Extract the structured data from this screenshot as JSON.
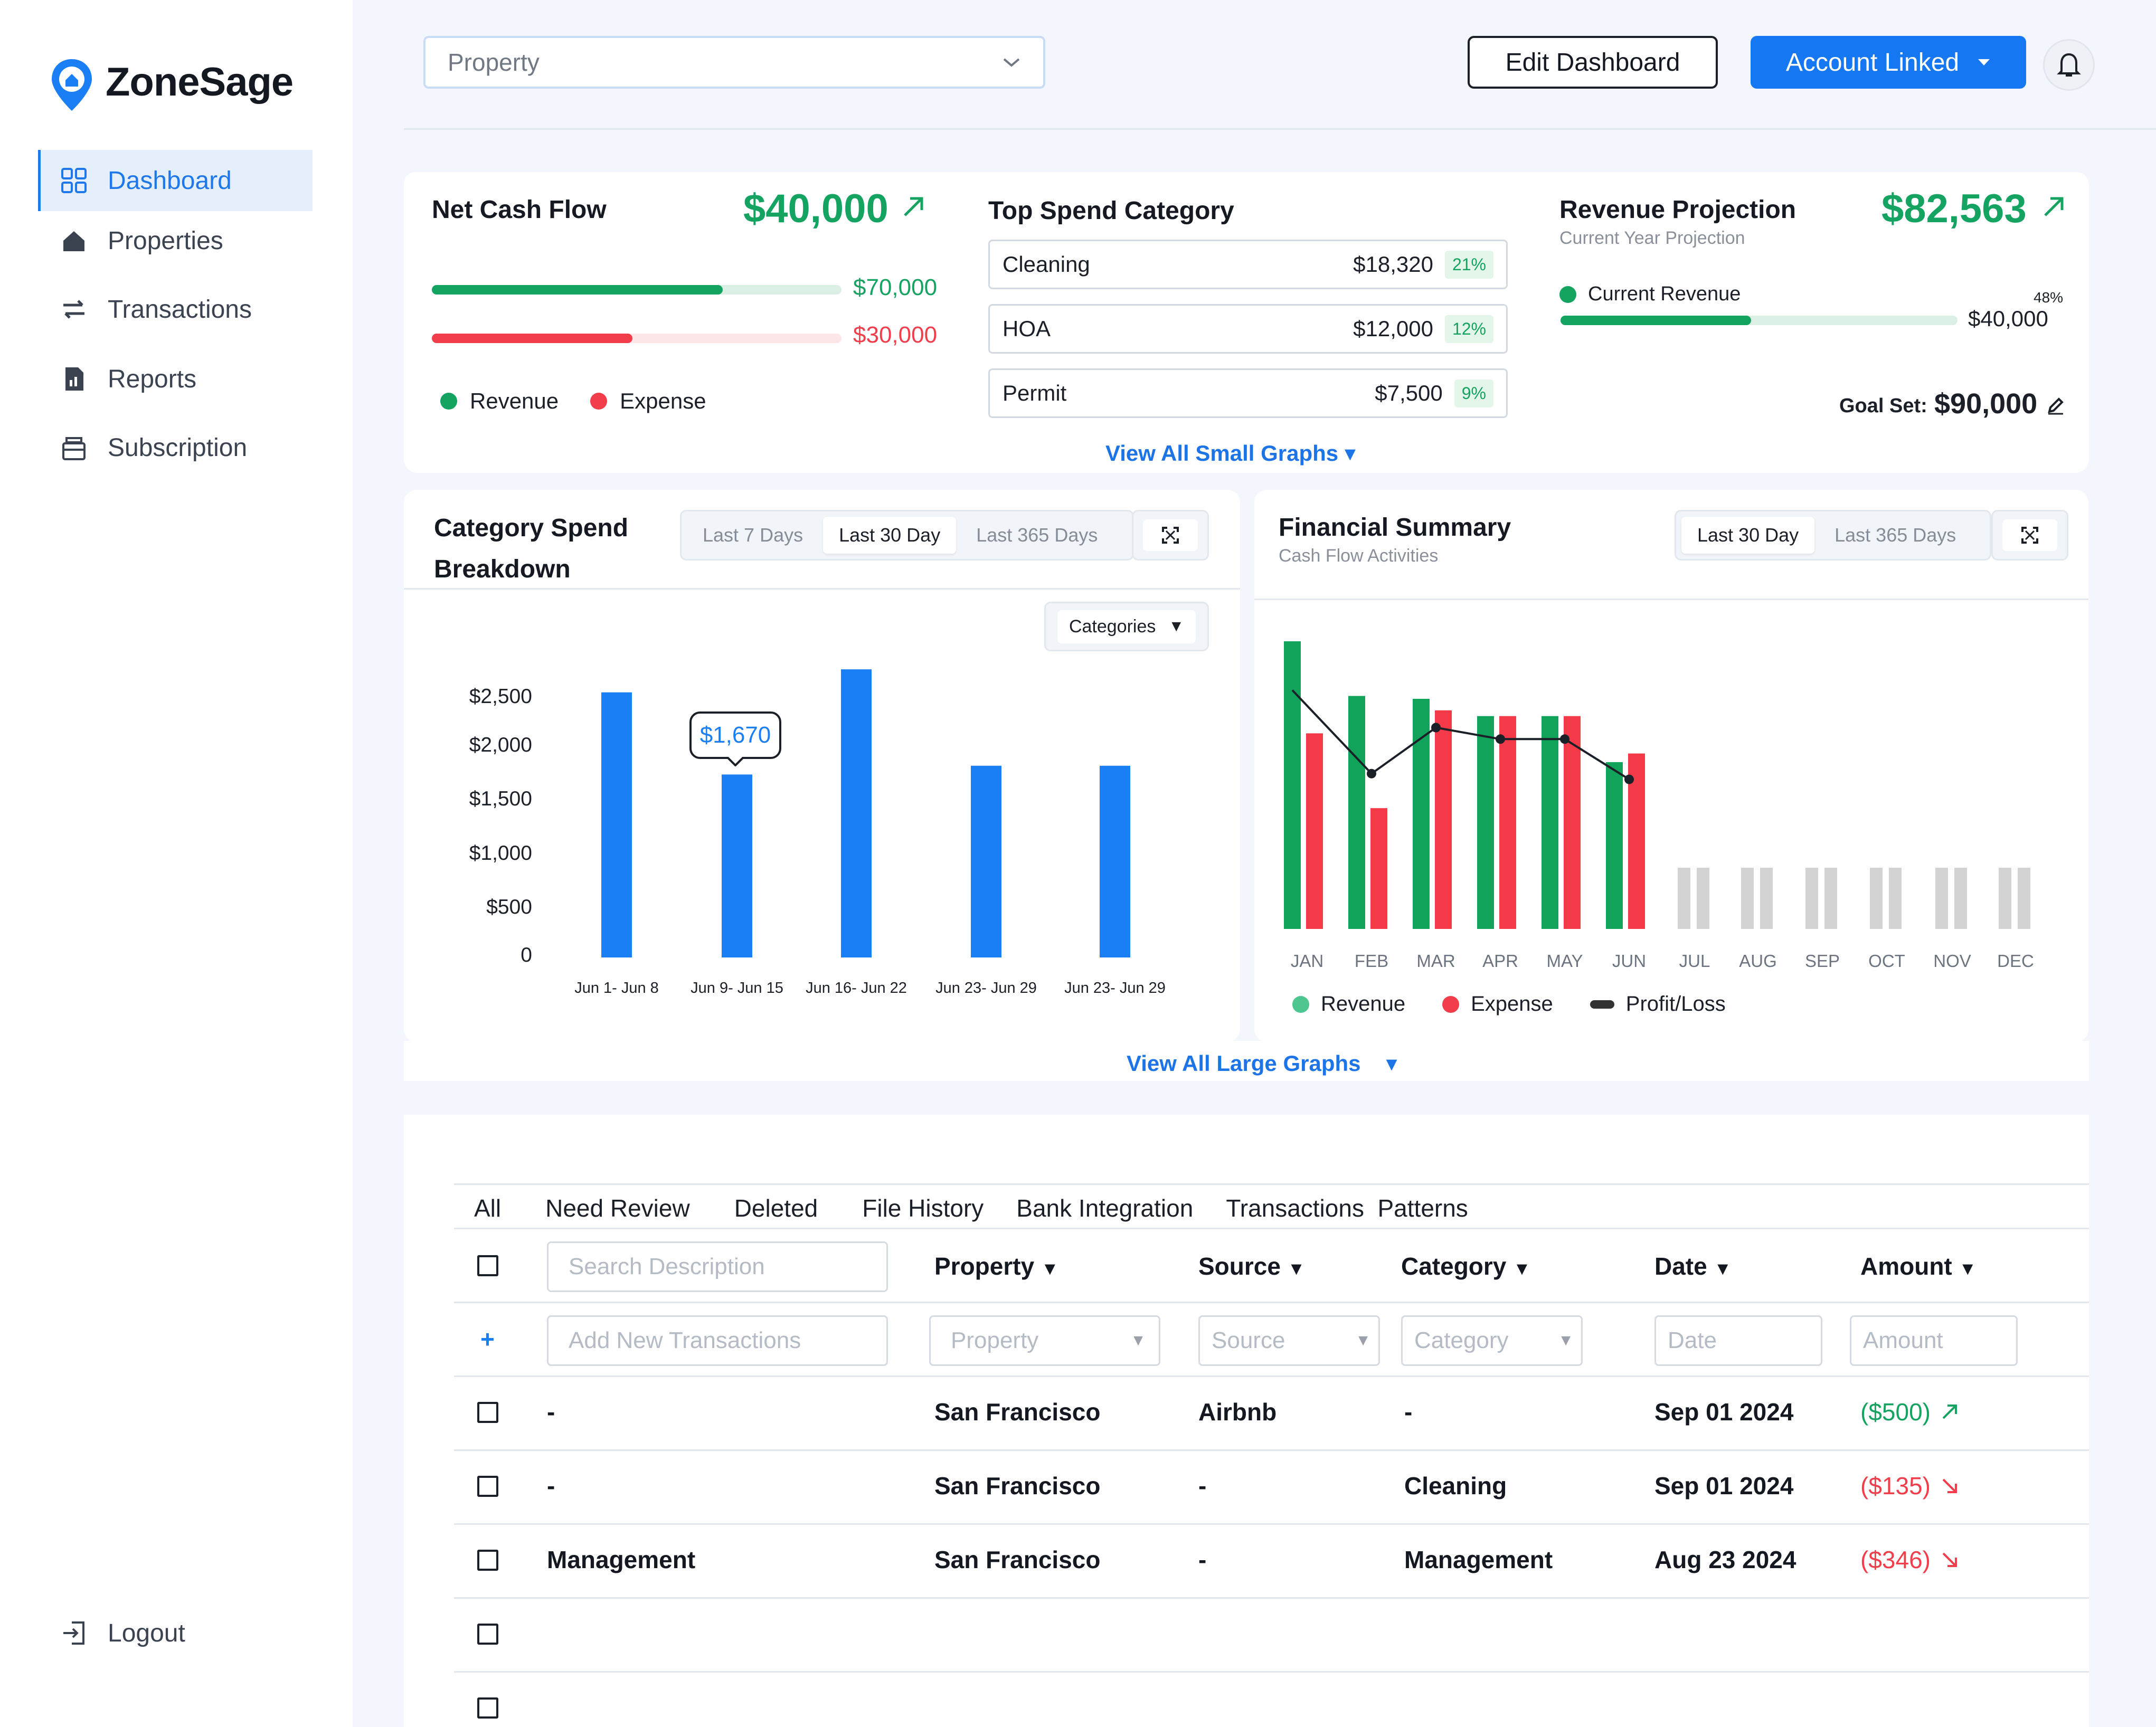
{
  "app": {
    "name": "ZoneSage"
  },
  "sidebar": {
    "items": [
      {
        "label": "Dashboard",
        "icon": "grid-icon",
        "active": true
      },
      {
        "label": "Properties",
        "icon": "home-icon"
      },
      {
        "label": "Transactions",
        "icon": "transfer-icon"
      },
      {
        "label": "Reports",
        "icon": "report-icon"
      },
      {
        "label": "Subscription",
        "icon": "subscription-icon"
      }
    ],
    "logout": "Logout"
  },
  "header": {
    "property_placeholder": "Property",
    "edit_dashboard": "Edit Dashboard",
    "account_linked": "Account Linked"
  },
  "net_cash_flow": {
    "title": "Net Cash Flow",
    "value": "$40,000",
    "revenue": "$70,000",
    "expense": "$30,000",
    "revenue_fill": 0.71,
    "expense_fill": 0.49,
    "legend_revenue": "Revenue",
    "legend_expense": "Expense"
  },
  "top_spend": {
    "title": "Top Spend Category",
    "rows": [
      {
        "name": "Cleaning",
        "amount": "$18,320",
        "pct": "21%"
      },
      {
        "name": "HOA",
        "amount": "$12,000",
        "pct": "12%"
      },
      {
        "name": "Permit",
        "amount": "$7,500",
        "pct": "9%"
      }
    ]
  },
  "revenue_projection": {
    "title": "Revenue Projection",
    "subtitle": "Current Year Projection",
    "value": "$82,563",
    "current_label": "Current Revenue",
    "pct": "48%",
    "current_value": "$40,000",
    "progress": 0.48,
    "goal_label": "Goal Set:",
    "goal_value": "$90,000"
  },
  "view_all_small": "View All Small Graphs",
  "view_all_large": "View All Large Graphs",
  "category_spend": {
    "title_line1": "Category Spend",
    "title_line2": "Breakdown",
    "ranges": [
      "Last 7 Days",
      "Last 30 Day",
      "Last 365 Days"
    ],
    "active_range": 1,
    "filter": "Categories",
    "tooltip": "$1,670"
  },
  "financial_summary": {
    "title": "Financial Summary",
    "subtitle": "Cash Flow Activities",
    "ranges": [
      "Last 30 Day",
      "Last 365 Days"
    ],
    "active_range": 0,
    "legend": [
      "Revenue",
      "Expense",
      "Profit/Loss"
    ]
  },
  "chart_data": [
    {
      "type": "bar",
      "categories": [
        "Jun 1- Jun 8",
        "Jun 9- Jun 15",
        "Jun 16- Jun 22",
        "Jun 23- Jun 29",
        "Jun 23- Jun 29"
      ],
      "values": [
        2420,
        1670,
        2630,
        1750,
        1750
      ],
      "yticks": [
        "0",
        "$500",
        "$1,000",
        "$1,500",
        "$2,000",
        "$2,500"
      ],
      "ylim": [
        0,
        2650
      ],
      "color": "#1a7ef5"
    },
    {
      "type": "bar",
      "categories": [
        "JAN",
        "FEB",
        "MAR",
        "APR",
        "MAY",
        "JUN",
        "JUL",
        "AUG",
        "SEP",
        "OCT",
        "NOV",
        "DEC"
      ],
      "series": [
        {
          "name": "Revenue",
          "color": "#12a35a",
          "values": [
            100,
            81,
            80,
            74,
            74,
            58,
            null,
            null,
            null,
            null,
            null,
            null
          ]
        },
        {
          "name": "Expense",
          "color": "#f43a48",
          "values": [
            68,
            42,
            76,
            74,
            74,
            61,
            null,
            null,
            null,
            null,
            null,
            null
          ]
        },
        {
          "name": "Profit/Loss",
          "color": "#1b1f27",
          "values": [
            83,
            54,
            70,
            66,
            66,
            52,
            null,
            null,
            null,
            null,
            null,
            null
          ]
        }
      ],
      "placeholder_color": "#d3d3d3",
      "ylim": [
        0,
        100
      ]
    }
  ],
  "transactions": {
    "tabs": [
      "All",
      "Need Review",
      "Deleted",
      "File History",
      "Bank Integration",
      "Transactions  Patterns"
    ],
    "search_placeholder": "Search Description",
    "headers": {
      "property": "Property",
      "source": "Source",
      "category": "Category",
      "date": "Date",
      "amount": "Amount"
    },
    "add_row": {
      "plus": "+",
      "description": "Add New Transactions",
      "property": "Property",
      "source": "Source",
      "category": "Category",
      "date": "Date",
      "amount": "Amount"
    },
    "rows": [
      {
        "description": "-",
        "property": "San Francisco",
        "source": "Airbnb",
        "category": "-",
        "date": "Sep 01 2024",
        "amount": "($500)",
        "direction": "up"
      },
      {
        "description": "-",
        "property": "San Francisco",
        "source": "-",
        "category": "Cleaning",
        "date": "Sep 01 2024",
        "amount": "($135)",
        "direction": "down"
      },
      {
        "description": "Management",
        "property": "San Francisco",
        "source": "-",
        "category": "Management",
        "date": "Aug 23 2024",
        "amount": "($346)",
        "direction": "down"
      }
    ]
  },
  "colors": {
    "accent": "#1677f2",
    "green": "#14a361",
    "red": "#f23d4b"
  }
}
